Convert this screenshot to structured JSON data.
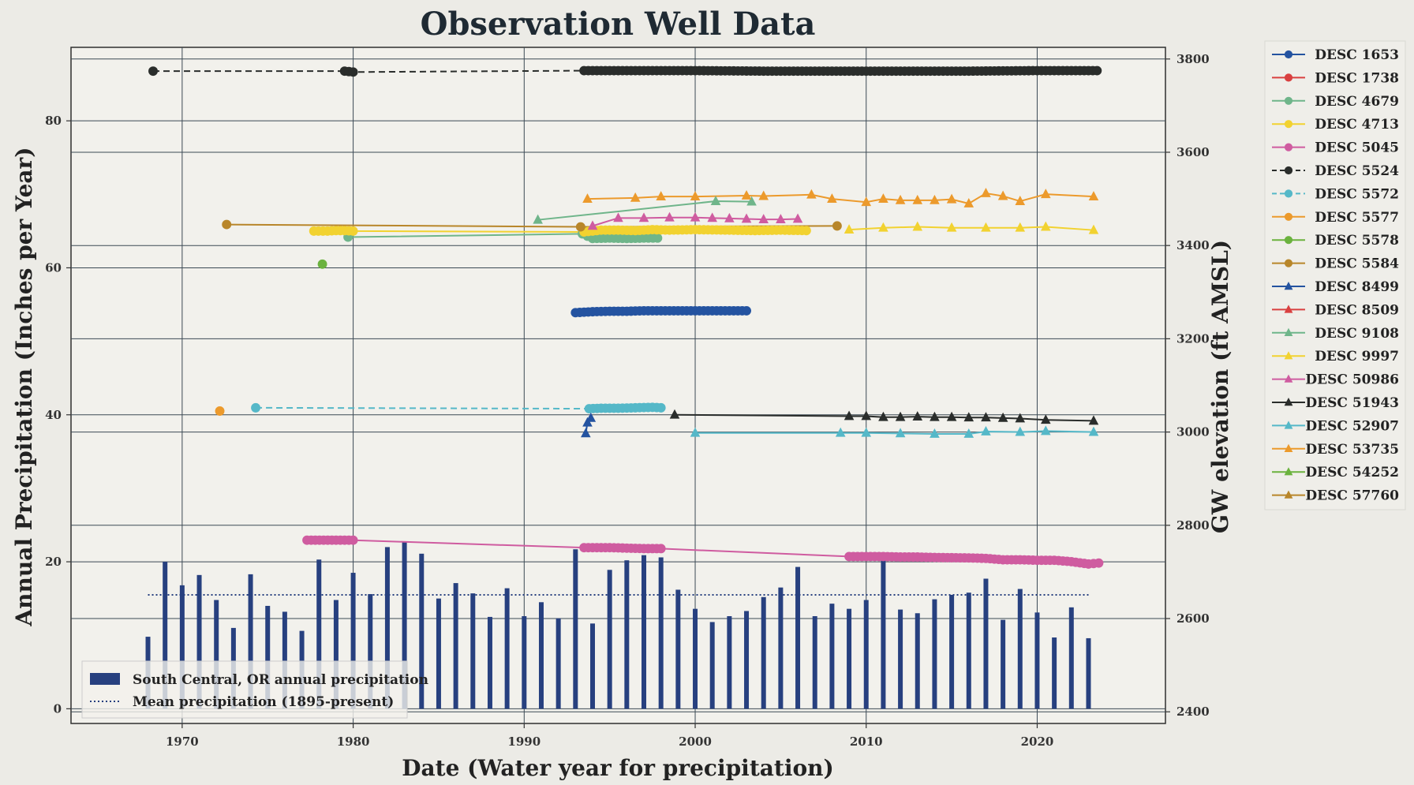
{
  "chart_data": {
    "type": "line",
    "title": "Observation Well Data",
    "xlabel": "Date (Water year for precipitation)",
    "ylabel_left": "Annual Precipitation (Inches per Year)",
    "ylabel_right": "GW elevation (ft AMSL)",
    "xlim": [
      1963.5,
      2027.5
    ],
    "ylim_left": [
      -2,
      90
    ],
    "ylim_right": [
      2375,
      3825
    ],
    "x_ticks": [
      1970,
      1980,
      1990,
      2000,
      2010,
      2020
    ],
    "y_left_ticks": [
      0,
      20,
      40,
      60,
      80
    ],
    "y_right_ticks": [
      2400,
      2600,
      2800,
      3000,
      3200,
      3400,
      3600,
      3800
    ],
    "grid": true,
    "legend_placement": "outside-right",
    "precip_legend_placement": "lower-left",
    "precipitation": {
      "name": "South Central, OR annual precipitation",
      "color": "#27407f",
      "years": [
        1968,
        1969,
        1970,
        1971,
        1972,
        1973,
        1974,
        1975,
        1976,
        1977,
        1978,
        1979,
        1980,
        1981,
        1982,
        1983,
        1984,
        1985,
        1986,
        1987,
        1988,
        1989,
        1990,
        1991,
        1992,
        1993,
        1994,
        1995,
        1996,
        1997,
        1998,
        1999,
        2000,
        2001,
        2002,
        2003,
        2004,
        2005,
        2006,
        2007,
        2008,
        2009,
        2010,
        2011,
        2012,
        2013,
        2014,
        2015,
        2016,
        2017,
        2018,
        2019,
        2020,
        2021,
        2022,
        2023
      ],
      "values": [
        9.8,
        20,
        16.8,
        18.2,
        14.8,
        11,
        18.3,
        14,
        13.2,
        10.6,
        20.3,
        14.8,
        18.5,
        15.6,
        22,
        22.7,
        21.1,
        15,
        17.1,
        15.7,
        12.5,
        16.4,
        12.6,
        14.5,
        12.3,
        21.7,
        11.6,
        18.9,
        20.2,
        20.9,
        20.6,
        16.2,
        13.6,
        11.8,
        12.6,
        13.3,
        15.2,
        16.5,
        19.3,
        12.6,
        14.3,
        13.6,
        14.8,
        20.4,
        13.5,
        13,
        14.9,
        15.5,
        15.8,
        17.7,
        12.1,
        16.3,
        13.1,
        9.7,
        13.8,
        9.6
      ]
    },
    "mean_precipitation": {
      "name": "Mean precipitation (1895-present)",
      "value": 15.5,
      "x_range": [
        1968,
        2023
      ]
    },
    "series": [
      {
        "name": "DESC 1653",
        "color": "#2453a0",
        "marker": "circle",
        "dash": "solid",
        "points": [
          [
            1993,
            3256
          ],
          [
            1994,
            3258
          ],
          [
            1995,
            3259
          ],
          [
            1996,
            3259
          ],
          [
            1997,
            3260
          ],
          [
            1998,
            3260
          ],
          [
            1999,
            3260
          ],
          [
            2000,
            3260
          ],
          [
            2001,
            3260
          ],
          [
            2002,
            3260
          ],
          [
            2003,
            3260
          ]
        ]
      },
      {
        "name": "DESC 1738",
        "color": "#d94040",
        "marker": "circle",
        "dash": "solid",
        "points": []
      },
      {
        "name": "DESC 4679",
        "color": "#6fb58a",
        "marker": "circle",
        "dash": "solid",
        "points": [
          [
            1979.7,
            3418
          ],
          [
            1993.4,
            3425
          ],
          [
            1994,
            3415
          ],
          [
            1995,
            3416
          ],
          [
            1996,
            3415
          ],
          [
            1997,
            3416
          ],
          [
            1997.8,
            3416
          ]
        ]
      },
      {
        "name": "DESC 4713",
        "color": "#f2d230",
        "marker": "circle",
        "dash": "solid",
        "points": [
          [
            1977.7,
            3431
          ],
          [
            1978.5,
            3431
          ],
          [
            1979,
            3432
          ],
          [
            1979.5,
            3432
          ],
          [
            1980,
            3431
          ],
          [
            1993.5,
            3429
          ],
          [
            1994.5,
            3433
          ],
          [
            1995.5,
            3433
          ],
          [
            1996.5,
            3432
          ],
          [
            1997.5,
            3434
          ],
          [
            1998.5,
            3433
          ],
          [
            2000,
            3434
          ],
          [
            2002,
            3433
          ],
          [
            2003.5,
            3432
          ],
          [
            2005,
            3433
          ],
          [
            2006.5,
            3432
          ]
        ]
      },
      {
        "name": "DESC 5045",
        "color": "#cf5ca0",
        "marker": "circle",
        "dash": "solid",
        "points": [
          [
            1977.3,
            2768
          ],
          [
            1979,
            2768
          ],
          [
            1980,
            2768
          ],
          [
            1993.5,
            2752
          ],
          [
            1994,
            2752
          ],
          [
            1995,
            2752
          ],
          [
            1996,
            2751
          ],
          [
            1997,
            2750
          ],
          [
            1998,
            2750
          ],
          [
            2009,
            2733
          ],
          [
            2010,
            2733
          ],
          [
            2011,
            2733
          ],
          [
            2012,
            2732
          ],
          [
            2013,
            2732
          ],
          [
            2014,
            2731
          ],
          [
            2016,
            2730
          ],
          [
            2017,
            2729
          ],
          [
            2018,
            2726
          ],
          [
            2019,
            2726
          ],
          [
            2020,
            2725
          ],
          [
            2021,
            2725
          ],
          [
            2022,
            2722
          ],
          [
            2023,
            2717
          ],
          [
            2023.6,
            2719
          ]
        ]
      },
      {
        "name": "DESC 5524",
        "color": "#2a2d2b",
        "marker": "circle",
        "dash": "dashed",
        "points": [
          [
            1968.3,
            3774
          ],
          [
            1979.5,
            3774
          ],
          [
            1980,
            3772
          ],
          [
            1993.5,
            3775
          ],
          [
            1996,
            3775
          ],
          [
            2000,
            3775
          ],
          [
            2004,
            3774
          ],
          [
            2008,
            3774
          ],
          [
            2012,
            3774
          ],
          [
            2016,
            3774
          ],
          [
            2020,
            3775
          ],
          [
            2023.5,
            3775
          ]
        ]
      },
      {
        "name": "DESC 5572",
        "color": "#55b8c8",
        "marker": "circle",
        "dash": "dashed",
        "points": [
          [
            1974.3,
            3052
          ],
          [
            1993.8,
            3050
          ],
          [
            1994.5,
            3051
          ],
          [
            1995.5,
            3051
          ],
          [
            1996.5,
            3052
          ],
          [
            1997.5,
            3053
          ],
          [
            1998,
            3052
          ]
        ]
      },
      {
        "name": "DESC 5577",
        "color": "#ec9a2c",
        "marker": "circle",
        "dash": "solid",
        "points": [
          [
            1972.2,
            3045
          ]
        ]
      },
      {
        "name": "DESC 5578",
        "color": "#6bb23e",
        "marker": "circle",
        "dash": "solid",
        "points": [
          [
            1978.2,
            3360
          ]
        ]
      },
      {
        "name": "DESC 5584",
        "color": "#b8862a",
        "marker": "circle",
        "dash": "solid",
        "points": [
          [
            1972.6,
            3445
          ],
          [
            1993.3,
            3440
          ],
          [
            2008.3,
            3442
          ]
        ]
      },
      {
        "name": "DESC 8499",
        "color": "#2453a0",
        "marker": "triangle",
        "dash": "solid",
        "points": [
          [
            1993.6,
            2997
          ],
          [
            1993.7,
            3020
          ],
          [
            1993.9,
            3030
          ]
        ]
      },
      {
        "name": "DESC 8509",
        "color": "#d94040",
        "marker": "triangle",
        "dash": "solid",
        "points": []
      },
      {
        "name": "DESC 9108",
        "color": "#6fb58a",
        "marker": "triangle",
        "dash": "solid",
        "points": [
          [
            1990.8,
            3455
          ],
          [
            2001.2,
            3495
          ],
          [
            2003.3,
            3494
          ]
        ]
      },
      {
        "name": "DESC 9997",
        "color": "#f2d230",
        "marker": "triangle",
        "dash": "solid",
        "points": [
          [
            2009,
            3434
          ],
          [
            2011,
            3438
          ],
          [
            2013,
            3440
          ],
          [
            2015,
            3438
          ],
          [
            2017,
            3438
          ],
          [
            2019,
            3438
          ],
          [
            2020.5,
            3440
          ],
          [
            2023.3,
            3433
          ]
        ]
      },
      {
        "name": "DESC 50986",
        "color": "#cf5ca0",
        "marker": "triangle",
        "dash": "solid",
        "points": [
          [
            1994,
            3442
          ],
          [
            1995.5,
            3459
          ],
          [
            1997,
            3459
          ],
          [
            1998.5,
            3460
          ],
          [
            2000,
            3460
          ],
          [
            2001,
            3459
          ],
          [
            2002,
            3458
          ],
          [
            2003,
            3457
          ],
          [
            2004,
            3456
          ],
          [
            2005,
            3456
          ],
          [
            2006,
            3457
          ]
        ]
      },
      {
        "name": "DESC 51943",
        "color": "#2a2d2b",
        "marker": "triangle",
        "dash": "solid",
        "points": [
          [
            1998.8,
            3037
          ],
          [
            2009,
            3034
          ],
          [
            2010,
            3034
          ],
          [
            2011,
            3032
          ],
          [
            2012,
            3032
          ],
          [
            2013,
            3033
          ],
          [
            2014,
            3032
          ],
          [
            2015,
            3032
          ],
          [
            2016,
            3031
          ],
          [
            2017,
            3031
          ],
          [
            2018,
            3030
          ],
          [
            2019,
            3029
          ],
          [
            2020.5,
            3026
          ],
          [
            2023.3,
            3024
          ]
        ]
      },
      {
        "name": "DESC 52907",
        "color": "#55b8c8",
        "marker": "triangle",
        "dash": "solid",
        "points": [
          [
            2000,
            2998
          ],
          [
            2008.5,
            2998
          ],
          [
            2010,
            2998
          ],
          [
            2012,
            2997
          ],
          [
            2014,
            2996
          ],
          [
            2016,
            2996
          ],
          [
            2017,
            3001
          ],
          [
            2019,
            3000
          ],
          [
            2020.5,
            3002
          ],
          [
            2023.3,
            3000
          ]
        ]
      },
      {
        "name": "DESC 53735",
        "color": "#ec9a2c",
        "marker": "triangle",
        "dash": "solid",
        "points": [
          [
            1993.7,
            3500
          ],
          [
            1996.5,
            3502
          ],
          [
            1998,
            3505
          ],
          [
            2000,
            3505
          ],
          [
            2003,
            3507
          ],
          [
            2004,
            3506
          ],
          [
            2006.8,
            3509
          ],
          [
            2008,
            3500
          ],
          [
            2010,
            3493
          ],
          [
            2011,
            3500
          ],
          [
            2012,
            3497
          ],
          [
            2013,
            3497
          ],
          [
            2014,
            3497
          ],
          [
            2015,
            3499
          ],
          [
            2016,
            3490
          ],
          [
            2017,
            3512
          ],
          [
            2018,
            3506
          ],
          [
            2019,
            3495
          ],
          [
            2020.5,
            3510
          ],
          [
            2023.3,
            3505
          ]
        ]
      },
      {
        "name": "DESC 54252",
        "color": "#6bb23e",
        "marker": "triangle",
        "dash": "solid",
        "points": []
      },
      {
        "name": "DESC 57760",
        "color": "#b8862a",
        "marker": "triangle",
        "dash": "solid",
        "points": []
      }
    ]
  }
}
